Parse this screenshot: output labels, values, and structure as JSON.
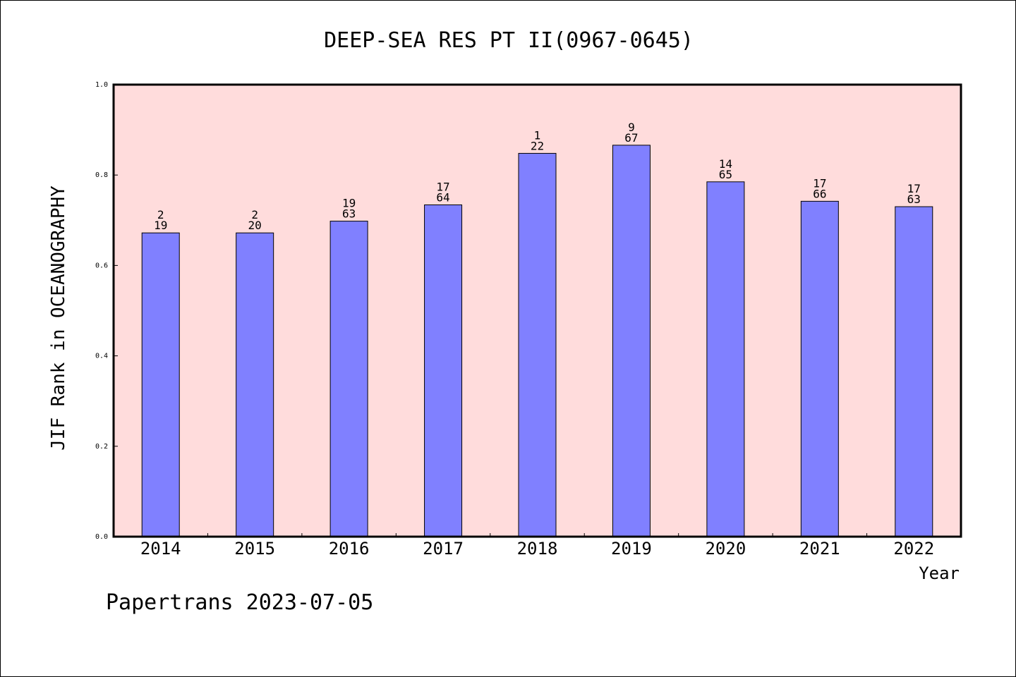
{
  "chart_data": {
    "type": "bar",
    "title": "DEEP-SEA RES PT II(0967-0645)",
    "xlabel": "Year",
    "ylabel": "JIF Rank in OCEANOGRAPHY",
    "ylim": [
      0,
      1.0
    ],
    "yticks": [
      "0.0",
      "0.2",
      "0.4",
      "0.6",
      "0.8",
      "1.0"
    ],
    "categories": [
      "2014",
      "2015",
      "2016",
      "2017",
      "2018",
      "2019",
      "2020",
      "2021",
      "2022"
    ],
    "values": [
      0.672,
      0.672,
      0.698,
      0.734,
      0.848,
      0.866,
      0.785,
      0.742,
      0.73
    ],
    "rank": [
      "2",
      "2",
      "19",
      "17",
      "1",
      "9",
      "14",
      "17",
      "17"
    ],
    "total": [
      "19",
      "20",
      "63",
      "64",
      "22",
      "67",
      "65",
      "66",
      "63"
    ],
    "grid": false,
    "colors": {
      "plot_background": "#ffdcdc",
      "bar_fill": "#8080ff",
      "bar_stroke": "#000000"
    }
  },
  "footer": "Papertrans 2023-07-05"
}
